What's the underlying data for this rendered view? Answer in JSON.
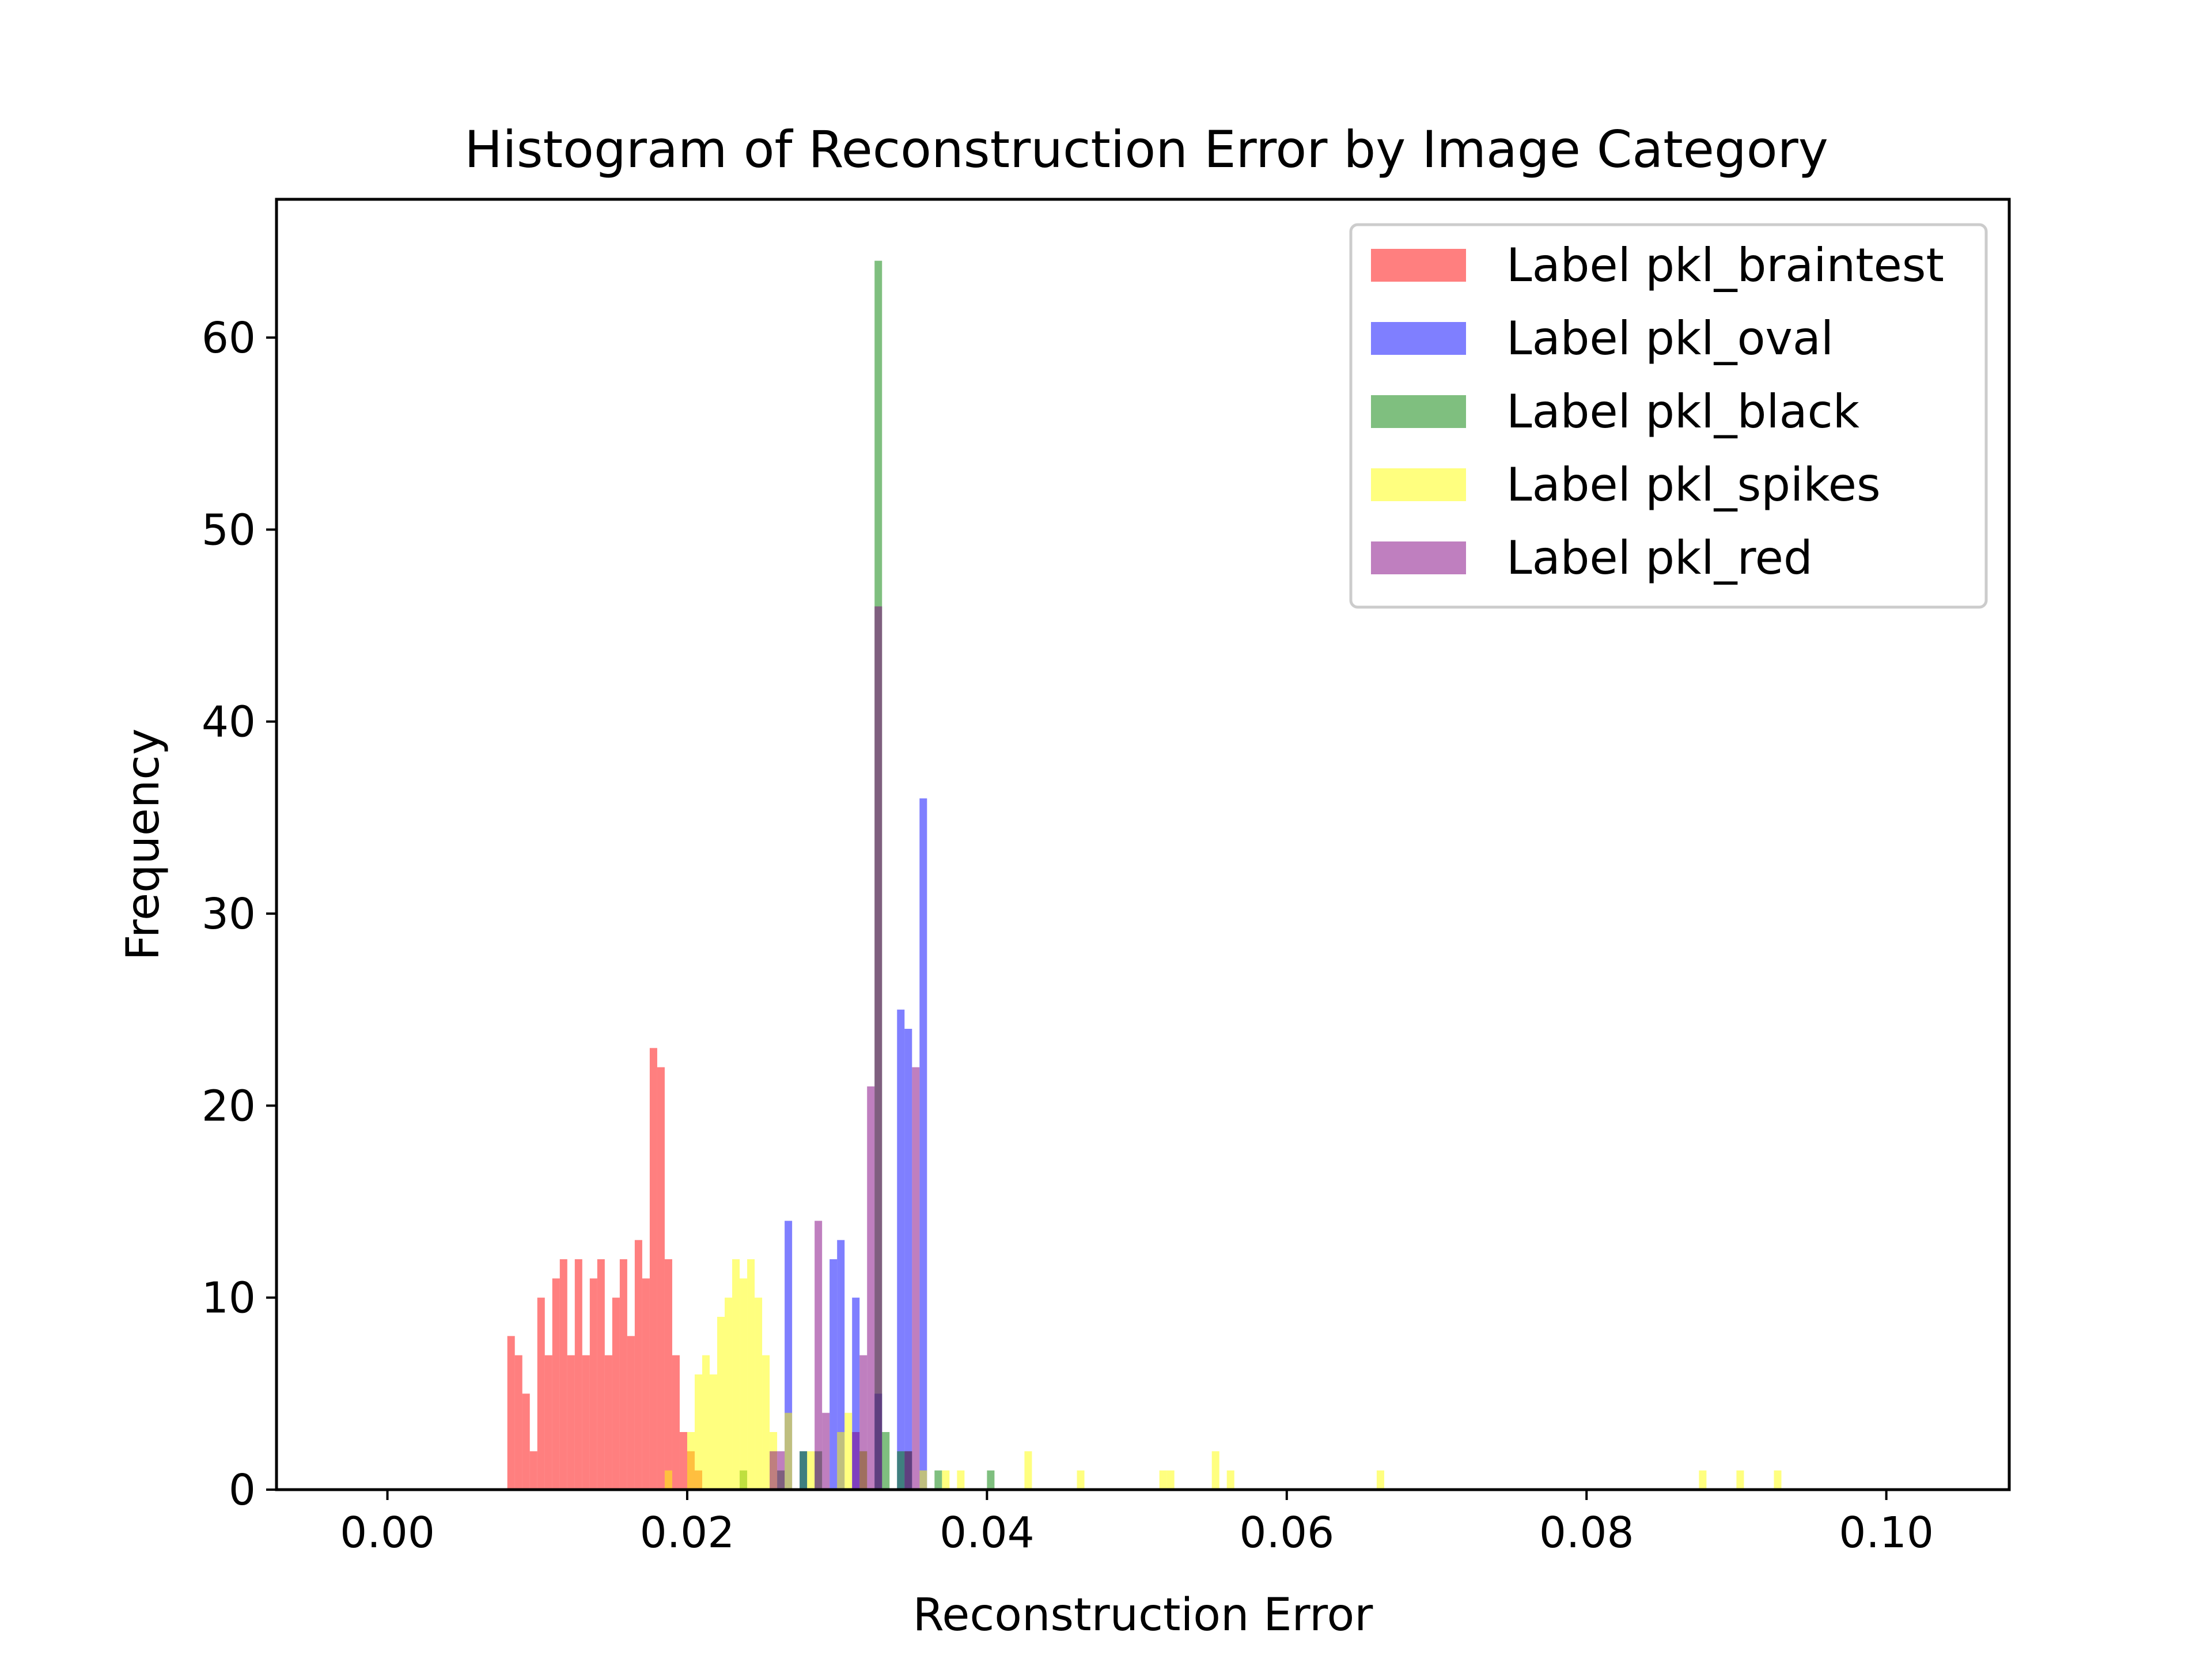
{
  "chart_data": {
    "type": "histogram",
    "title": "Histogram of Reconstruction Error by Image Category",
    "xlabel": "Reconstruction Error",
    "ylabel": "Frequency",
    "xlim": [
      -0.0074,
      0.1082
    ],
    "ylim": [
      0,
      67.2
    ],
    "xticks": [
      0.0,
      0.02,
      0.04,
      0.06,
      0.08,
      0.1
    ],
    "xtick_labels": [
      "0.00",
      "0.02",
      "0.04",
      "0.06",
      "0.08",
      "0.10"
    ],
    "yticks": [
      0,
      10,
      20,
      30,
      40,
      50,
      60
    ],
    "ytick_labels": [
      "0",
      "10",
      "20",
      "30",
      "40",
      "50",
      "60"
    ],
    "bin_width": 0.0005,
    "legend_position": "upper-right",
    "series": [
      {
        "name": "Label pkl_braintest",
        "color": "#ff0000",
        "alpha": 0.5,
        "bins": [
          [
            0.008,
            8
          ],
          [
            0.0085,
            7
          ],
          [
            0.009,
            5
          ],
          [
            0.0095,
            2
          ],
          [
            0.01,
            10
          ],
          [
            0.0105,
            7
          ],
          [
            0.011,
            11
          ],
          [
            0.0115,
            12
          ],
          [
            0.012,
            7
          ],
          [
            0.0125,
            12
          ],
          [
            0.013,
            7
          ],
          [
            0.0135,
            11
          ],
          [
            0.014,
            12
          ],
          [
            0.0145,
            7
          ],
          [
            0.015,
            10
          ],
          [
            0.0155,
            12
          ],
          [
            0.016,
            8
          ],
          [
            0.0165,
            13
          ],
          [
            0.017,
            11
          ],
          [
            0.0175,
            23
          ],
          [
            0.018,
            22
          ],
          [
            0.0185,
            12
          ],
          [
            0.019,
            7
          ],
          [
            0.0195,
            3
          ],
          [
            0.02,
            2
          ],
          [
            0.0205,
            1
          ]
        ]
      },
      {
        "name": "Label pkl_oval",
        "color": "#0000ff",
        "alpha": 0.5,
        "bins": [
          [
            0.0265,
            14
          ],
          [
            0.0275,
            2
          ],
          [
            0.0295,
            12
          ],
          [
            0.03,
            13
          ],
          [
            0.031,
            10
          ],
          [
            0.0325,
            5
          ],
          [
            0.034,
            25
          ],
          [
            0.0345,
            24
          ],
          [
            0.0355,
            36
          ]
        ]
      },
      {
        "name": "Label pkl_black",
        "color": "#008000",
        "alpha": 0.5,
        "bins": [
          [
            0.0235,
            1
          ],
          [
            0.026,
            1
          ],
          [
            0.0275,
            2
          ],
          [
            0.0285,
            2
          ],
          [
            0.0315,
            2
          ],
          [
            0.0325,
            64
          ],
          [
            0.033,
            3
          ],
          [
            0.034,
            2
          ],
          [
            0.0345,
            2
          ],
          [
            0.0365,
            1
          ],
          [
            0.04,
            1
          ]
        ]
      },
      {
        "name": "Label pkl_spikes",
        "color": "#ffff00",
        "alpha": 0.5,
        "bins": [
          [
            0.0185,
            1
          ],
          [
            0.02,
            3
          ],
          [
            0.0205,
            6
          ],
          [
            0.021,
            7
          ],
          [
            0.0215,
            6
          ],
          [
            0.022,
            9
          ],
          [
            0.0225,
            10
          ],
          [
            0.023,
            12
          ],
          [
            0.0235,
            11
          ],
          [
            0.024,
            12
          ],
          [
            0.0245,
            10
          ],
          [
            0.025,
            7
          ],
          [
            0.0255,
            3
          ],
          [
            0.0265,
            4
          ],
          [
            0.028,
            2
          ],
          [
            0.03,
            3
          ],
          [
            0.0305,
            4
          ],
          [
            0.0315,
            2
          ],
          [
            0.0355,
            1
          ],
          [
            0.037,
            1
          ],
          [
            0.038,
            1
          ],
          [
            0.0425,
            2
          ],
          [
            0.046,
            1
          ],
          [
            0.0515,
            1
          ],
          [
            0.052,
            1
          ],
          [
            0.055,
            2
          ],
          [
            0.056,
            1
          ],
          [
            0.066,
            1
          ],
          [
            0.0875,
            1
          ],
          [
            0.09,
            1
          ],
          [
            0.0925,
            1
          ]
        ]
      },
      {
        "name": "Label pkl_red",
        "color": "#800080",
        "alpha": 0.5,
        "bins": [
          [
            0.0255,
            2
          ],
          [
            0.026,
            2
          ],
          [
            0.0285,
            14
          ],
          [
            0.029,
            4
          ],
          [
            0.031,
            3
          ],
          [
            0.0315,
            7
          ],
          [
            0.032,
            21
          ],
          [
            0.0325,
            46
          ],
          [
            0.0345,
            2
          ],
          [
            0.035,
            22
          ]
        ]
      }
    ]
  }
}
